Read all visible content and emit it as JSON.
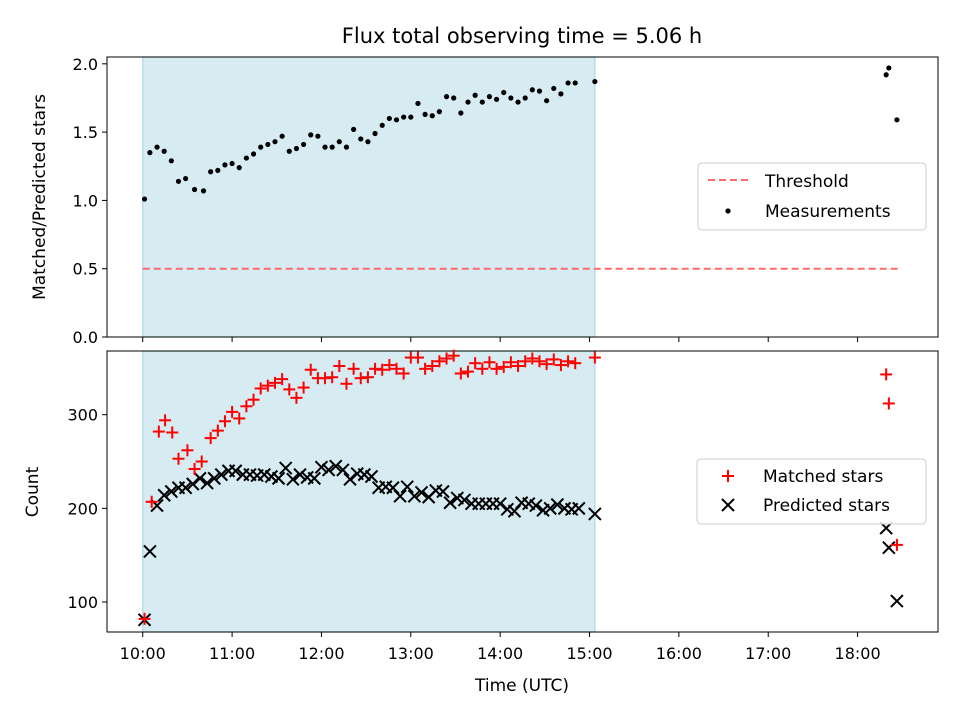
{
  "chart_data": [
    {
      "type": "scatter",
      "title": "Flux total observing time = 5.06 h",
      "ylabel": "Matched/Predicted stars",
      "xlabel": "",
      "ylim": [
        0,
        2.05
      ],
      "yticks": [
        0.0,
        0.5,
        1.0,
        1.5,
        2.0
      ],
      "yticklabels": [
        "0.0",
        "0.5",
        "1.0",
        "1.5",
        "2.0"
      ],
      "xlim": [
        9.6,
        18.9
      ],
      "observing_window": [
        10.0,
        15.06
      ],
      "colors": {
        "window": "#add8e6",
        "threshold": "#ff6b6b",
        "measurements": "#000000"
      },
      "legend": {
        "placement": "center-right",
        "entries": [
          "Threshold",
          "Measurements"
        ]
      },
      "threshold": {
        "name": "Threshold",
        "value": 0.5,
        "x": [
          10.0,
          18.45
        ]
      },
      "series": [
        {
          "name": "Measurements",
          "x": [
            10.02,
            10.08,
            10.16,
            10.24,
            10.32,
            10.4,
            10.48,
            10.58,
            10.68,
            10.76,
            10.84,
            10.92,
            11.0,
            11.08,
            11.16,
            11.24,
            11.32,
            11.4,
            11.48,
            11.56,
            11.64,
            11.72,
            11.8,
            11.88,
            11.96,
            12.04,
            12.12,
            12.2,
            12.28,
            12.36,
            12.44,
            12.52,
            12.6,
            12.68,
            12.76,
            12.84,
            12.92,
            13.0,
            13.08,
            13.16,
            13.24,
            13.32,
            13.4,
            13.48,
            13.56,
            13.64,
            13.72,
            13.8,
            13.88,
            13.96,
            14.04,
            14.12,
            14.2,
            14.28,
            14.36,
            14.44,
            14.52,
            14.6,
            14.68,
            14.76,
            14.84,
            15.06,
            18.32,
            18.35,
            18.44
          ],
          "y": [
            1.01,
            1.35,
            1.39,
            1.36,
            1.29,
            1.14,
            1.16,
            1.08,
            1.07,
            1.21,
            1.22,
            1.26,
            1.27,
            1.24,
            1.31,
            1.34,
            1.39,
            1.41,
            1.43,
            1.47,
            1.36,
            1.38,
            1.41,
            1.48,
            1.47,
            1.39,
            1.39,
            1.43,
            1.39,
            1.52,
            1.45,
            1.43,
            1.49,
            1.55,
            1.6,
            1.59,
            1.61,
            1.61,
            1.71,
            1.63,
            1.62,
            1.65,
            1.76,
            1.75,
            1.64,
            1.72,
            1.77,
            1.72,
            1.76,
            1.74,
            1.79,
            1.75,
            1.72,
            1.75,
            1.81,
            1.8,
            1.73,
            1.82,
            1.78,
            1.86,
            1.86,
            1.87,
            1.92,
            1.97,
            1.59
          ]
        }
      ]
    },
    {
      "type": "scatter",
      "title": "",
      "xlabel": "Time (UTC)",
      "ylabel": "Count",
      "ylim": [
        68,
        368
      ],
      "yticks": [
        100,
        200,
        300
      ],
      "yticklabels": [
        "100",
        "200",
        "300"
      ],
      "xlim": [
        9.6,
        18.9
      ],
      "xticks": [
        10,
        11,
        12,
        13,
        14,
        15,
        16,
        17,
        18
      ],
      "xticklabels": [
        "10:00",
        "11:00",
        "12:00",
        "13:00",
        "14:00",
        "15:00",
        "16:00",
        "17:00",
        "18:00"
      ],
      "observing_window": [
        10.0,
        15.06
      ],
      "colors": {
        "window": "#add8e6",
        "matched": "#ff0000",
        "predicted": "#000000"
      },
      "legend": {
        "placement": "center-right",
        "entries": [
          "Matched stars",
          "Predicted stars"
        ]
      },
      "series": [
        {
          "name": "Matched stars",
          "marker": "plus",
          "x": [
            10.02,
            10.1,
            10.18,
            10.25,
            10.33,
            10.4,
            10.5,
            10.58,
            10.66,
            10.76,
            10.84,
            10.92,
            11.0,
            11.08,
            11.16,
            11.24,
            11.32,
            11.4,
            11.48,
            11.56,
            11.64,
            11.72,
            11.8,
            11.88,
            11.96,
            12.04,
            12.12,
            12.2,
            12.28,
            12.36,
            12.44,
            12.52,
            12.6,
            12.68,
            12.76,
            12.84,
            12.92,
            13.0,
            13.08,
            13.16,
            13.24,
            13.32,
            13.4,
            13.48,
            13.56,
            13.64,
            13.72,
            13.8,
            13.88,
            13.96,
            14.04,
            14.12,
            14.2,
            14.28,
            14.36,
            14.44,
            14.52,
            14.6,
            14.68,
            14.76,
            14.84,
            15.06,
            18.32,
            18.35,
            18.44
          ],
          "y": [
            82,
            207,
            282,
            294,
            281,
            253,
            262,
            242,
            250,
            275,
            283,
            293,
            303,
            296,
            309,
            316,
            328,
            331,
            334,
            338,
            327,
            318,
            329,
            348,
            339,
            339,
            340,
            352,
            333,
            349,
            339,
            340,
            349,
            348,
            353,
            349,
            344,
            361,
            361,
            349,
            352,
            357,
            360,
            363,
            344,
            346,
            355,
            349,
            356,
            349,
            351,
            356,
            352,
            357,
            360,
            357,
            354,
            359,
            353,
            357,
            355,
            361,
            343,
            312,
            161
          ]
        },
        {
          "name": "Predicted stars",
          "marker": "x",
          "x": [
            10.02,
            10.08,
            10.16,
            10.24,
            10.32,
            10.4,
            10.48,
            10.56,
            10.64,
            10.72,
            10.8,
            10.88,
            10.96,
            11.04,
            11.12,
            11.2,
            11.28,
            11.36,
            11.44,
            11.52,
            11.6,
            11.68,
            11.76,
            11.84,
            11.92,
            12.0,
            12.08,
            12.16,
            12.24,
            12.32,
            12.4,
            12.48,
            12.56,
            12.64,
            12.72,
            12.8,
            12.88,
            12.96,
            13.04,
            13.12,
            13.2,
            13.28,
            13.36,
            13.44,
            13.52,
            13.6,
            13.68,
            13.76,
            13.84,
            13.92,
            14.0,
            14.08,
            14.16,
            14.24,
            14.32,
            14.4,
            14.48,
            14.56,
            14.64,
            14.72,
            14.8,
            14.88,
            15.06,
            18.32,
            18.35,
            18.44
          ],
          "y": [
            81,
            154,
            203,
            214,
            218,
            222,
            222,
            226,
            232,
            227,
            232,
            236,
            240,
            240,
            236,
            236,
            235,
            236,
            234,
            232,
            243,
            231,
            236,
            233,
            232,
            244,
            241,
            245,
            241,
            231,
            237,
            236,
            234,
            222,
            223,
            222,
            213,
            223,
            213,
            217,
            212,
            219,
            218,
            206,
            211,
            209,
            205,
            205,
            205,
            205,
            205,
            199,
            197,
            206,
            205,
            203,
            198,
            200,
            204,
            200,
            199,
            200,
            194,
            179,
            158,
            101
          ]
        }
      ]
    }
  ]
}
